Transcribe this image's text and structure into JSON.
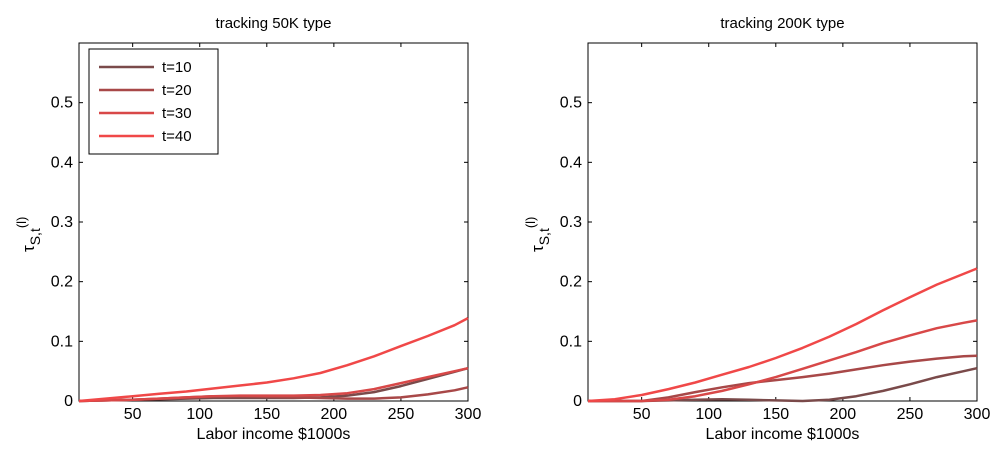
{
  "chart_data": [
    {
      "type": "line",
      "title": "tracking 50K type",
      "xlabel": "Labor income $1000s",
      "ylabel": {
        "base": "τ",
        "sub": "S,t",
        "sup": "(l)"
      },
      "xlim": [
        10,
        300
      ],
      "ylim": [
        0,
        0.6
      ],
      "xticks": [
        50,
        100,
        150,
        200,
        250,
        300
      ],
      "yticks": [
        0,
        0.1,
        0.2,
        0.3,
        0.4,
        0.5
      ],
      "legend": {
        "position": "top-left",
        "entries": [
          "t=10",
          "t=20",
          "t=30",
          "t=40"
        ]
      },
      "colors": [
        "#7a4a4a",
        "#a84848",
        "#d84848",
        "#f04848"
      ],
      "x": [
        10,
        30,
        50,
        70,
        90,
        110,
        130,
        150,
        170,
        190,
        210,
        230,
        250,
        270,
        290,
        300
      ],
      "series": [
        {
          "name": "t=10",
          "values": [
            0,
            0.001,
            0.002,
            0.003,
            0.004,
            0.005,
            0.005,
            0.005,
            0.005,
            0.006,
            0.009,
            0.015,
            0.025,
            0.037,
            0.049,
            0.055
          ]
        },
        {
          "name": "t=20",
          "values": [
            0,
            0.001,
            0.002,
            0.004,
            0.006,
            0.008,
            0.008,
            0.007,
            0.006,
            0.005,
            0.004,
            0.004,
            0.006,
            0.011,
            0.018,
            0.023
          ]
        },
        {
          "name": "t=30",
          "values": [
            0,
            0.001,
            0.002,
            0.004,
            0.006,
            0.008,
            0.009,
            0.009,
            0.009,
            0.01,
            0.013,
            0.02,
            0.03,
            0.04,
            0.05,
            0.055
          ]
        },
        {
          "name": "t=40",
          "values": [
            0,
            0.004,
            0.008,
            0.012,
            0.016,
            0.021,
            0.026,
            0.031,
            0.038,
            0.047,
            0.06,
            0.075,
            0.092,
            0.109,
            0.127,
            0.139
          ]
        }
      ]
    },
    {
      "type": "line",
      "title": "tracking 200K type",
      "xlabel": "Labor income $1000s",
      "ylabel": {
        "base": "τ",
        "sub": "S,t",
        "sup": "(l)"
      },
      "xlim": [
        10,
        300
      ],
      "ylim": [
        0,
        0.6
      ],
      "xticks": [
        50,
        100,
        150,
        200,
        250,
        300
      ],
      "yticks": [
        0,
        0.1,
        0.2,
        0.3,
        0.4,
        0.5
      ],
      "colors": [
        "#7a4a4a",
        "#a84848",
        "#d84848",
        "#f04848"
      ],
      "x": [
        10,
        30,
        50,
        70,
        90,
        110,
        130,
        150,
        170,
        190,
        210,
        230,
        250,
        270,
        290,
        300
      ],
      "series": [
        {
          "name": "t=10",
          "values": [
            0,
            0,
            0,
            0.001,
            0.002,
            0.003,
            0.002,
            0.001,
            0.0,
            0.002,
            0.008,
            0.017,
            0.028,
            0.04,
            0.05,
            0.055
          ]
        },
        {
          "name": "t=20",
          "values": [
            0,
            0,
            0,
            0.006,
            0.015,
            0.023,
            0.03,
            0.035,
            0.04,
            0.046,
            0.053,
            0.06,
            0.066,
            0.071,
            0.075,
            0.076
          ]
        },
        {
          "name": "t=30",
          "values": [
            0,
            0,
            0,
            0.002,
            0.008,
            0.017,
            0.028,
            0.04,
            0.054,
            0.068,
            0.082,
            0.097,
            0.11,
            0.122,
            0.131,
            0.135
          ]
        },
        {
          "name": "t=40",
          "values": [
            0,
            0.003,
            0.01,
            0.02,
            0.031,
            0.044,
            0.057,
            0.072,
            0.089,
            0.108,
            0.129,
            0.152,
            0.174,
            0.195,
            0.213,
            0.222
          ]
        }
      ]
    }
  ]
}
